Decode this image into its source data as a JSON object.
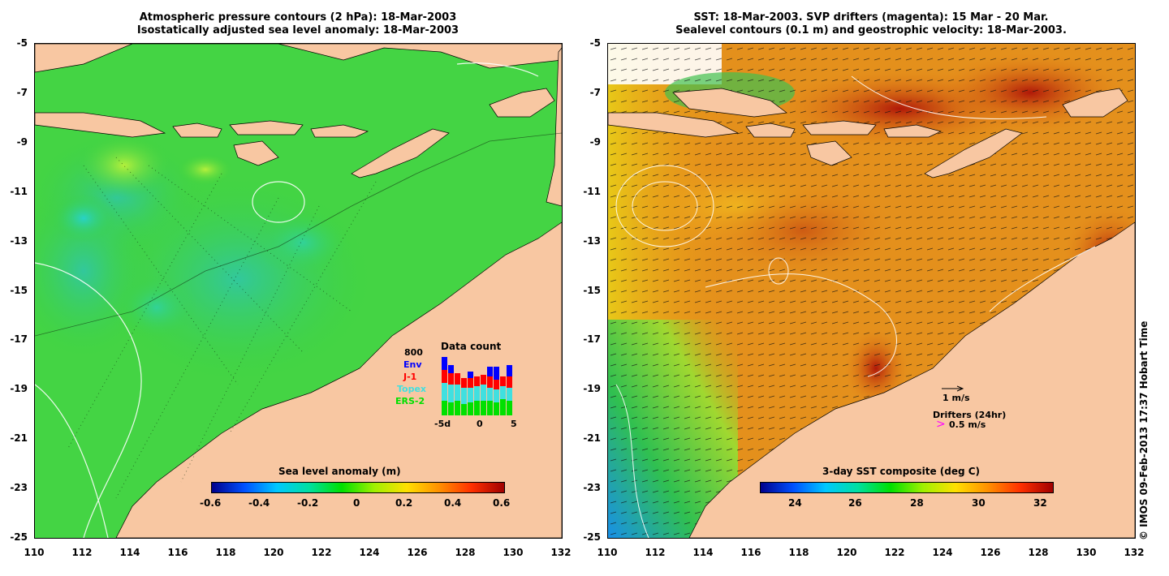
{
  "colors": {
    "land": "#f8c7a2",
    "env": "#0000ff",
    "j1": "#ff0000",
    "topex": "#40e0e0",
    "ers2": "#00e000",
    "drifter": "#ff00ff"
  },
  "left": {
    "title_line1": "Atmospheric pressure contours (2 hPa): 18-Mar-2003",
    "title_line2": "Isostatically adjusted sea level anomaly: 18-Mar-2003",
    "colorbar_label": "Sea level anomaly (m)",
    "colorbar_ticks": [
      "-0.6",
      "-0.4",
      "-0.2",
      "0",
      "0.2",
      "0.4",
      "0.6"
    ],
    "data_count": {
      "title": "Data count",
      "max_label": "800",
      "legend": [
        "Env",
        "J-1",
        "Topex",
        "ERS-2"
      ],
      "x_ticks": [
        "-5d",
        "0",
        "5"
      ]
    }
  },
  "right": {
    "title_line1": "SST: 18-Mar-2003. SVP drifters (magenta): 15 Mar - 20 Mar.",
    "title_line2": "Sealevel contours (0.1 m) and geostrophic velocity: 18-Mar-2003.",
    "colorbar_label": "3-day SST composite (deg C)",
    "colorbar_ticks": [
      "24",
      "26",
      "28",
      "30",
      "32"
    ],
    "velocity_label": "1 m/s",
    "drifters_label": "Drifters (24hr)",
    "drifter_speed_label": "0.5 m/s",
    "drifter_symbol": ">"
  },
  "axes": {
    "lat_ticks": [
      "-5",
      "-7",
      "-9",
      "-11",
      "-13",
      "-15",
      "-17",
      "-19",
      "-21",
      "-23",
      "-25"
    ],
    "lon_ticks": [
      "110",
      "112",
      "114",
      "116",
      "118",
      "120",
      "122",
      "124",
      "126",
      "128",
      "130",
      "132"
    ]
  },
  "copyright": "© IMOS 09-Feb-2013 17:37 Hobart Time"
}
